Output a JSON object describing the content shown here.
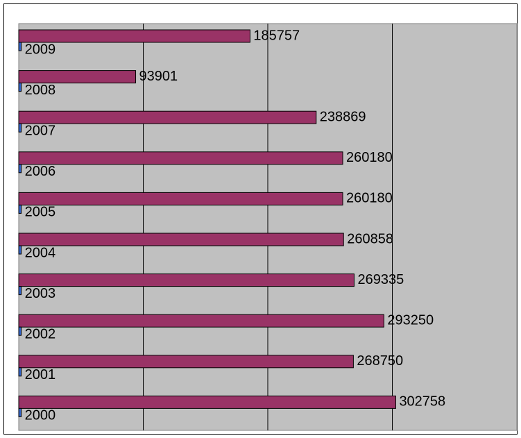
{
  "chart_data": {
    "type": "bar",
    "orientation": "horizontal",
    "xlim": [
      0,
      400000
    ],
    "xticks": [
      0,
      100000,
      200000,
      300000,
      400000
    ],
    "grid": true,
    "series": [
      {
        "color": "#993366",
        "values": [
          302758,
          268750,
          293250,
          269335,
          260858,
          260180,
          260180,
          238869,
          93901,
          185757
        ]
      },
      {
        "color": "#3366cc",
        "values": [
          2000,
          2001,
          2002,
          2003,
          2004,
          2005,
          2006,
          2007,
          2008,
          2009
        ]
      }
    ]
  }
}
